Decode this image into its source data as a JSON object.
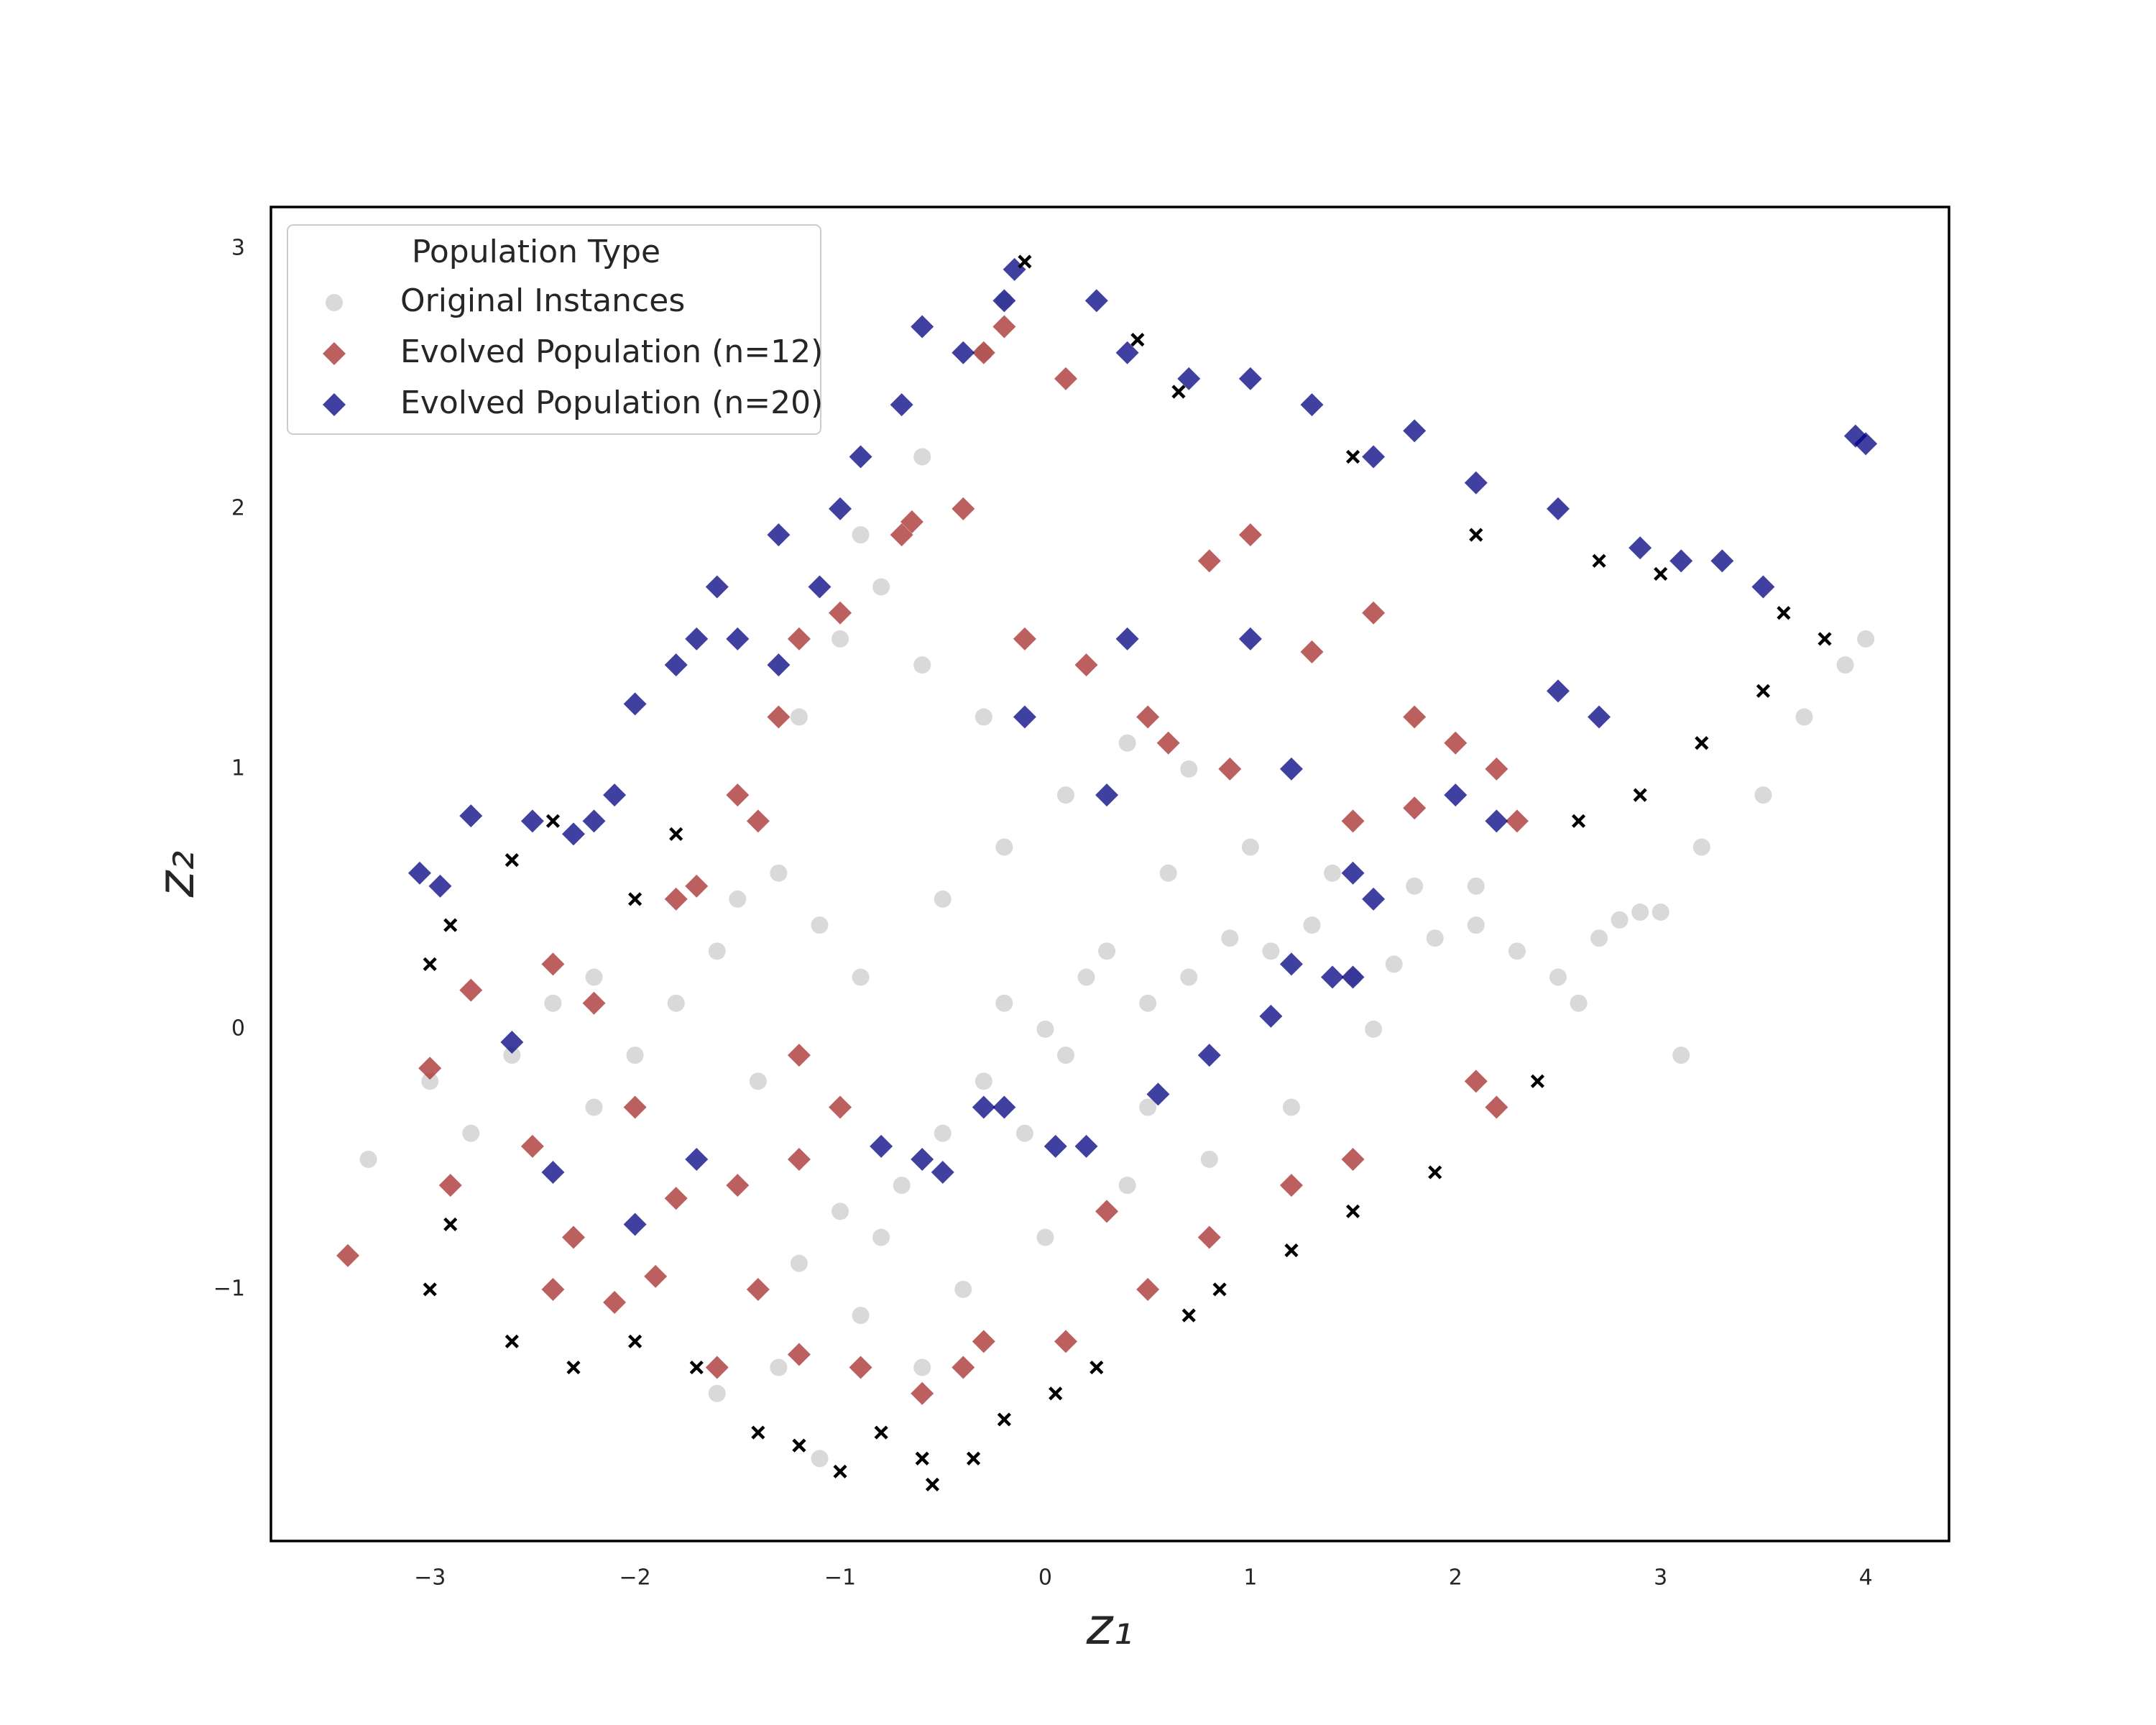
{
  "chart_data": {
    "type": "scatter",
    "xlabel": "z₁",
    "ylabel": "z₂",
    "xlim": [
      -3.775,
      4.406
    ],
    "ylim": [
      -1.967,
      3.16
    ],
    "xticks": [
      {
        "value": -3,
        "label": "−3"
      },
      {
        "value": -2,
        "label": "−2"
      },
      {
        "value": -1,
        "label": "−1"
      },
      0,
      1,
      2,
      3,
      4
    ],
    "yticks": [
      {
        "value": -1,
        "label": "−1"
      },
      0,
      1,
      2,
      3
    ],
    "grid": false,
    "legend_title": "Population Type",
    "legend_loc": "upper left",
    "series": [
      {
        "name": "Original Instances",
        "color": "#808080",
        "marker": "circle",
        "x": [
          -3.3,
          -3,
          -2.8,
          -2.6,
          -2.4,
          -2.2,
          -2.0,
          -2.2,
          -1.8,
          -1.6,
          -1.5,
          -1.3,
          -1.1,
          -0.9,
          -1.4,
          -1.2,
          -1.0,
          -0.8,
          -0.9,
          -0.7,
          -0.5,
          -0.3,
          -0.2,
          0,
          0.2,
          0.1,
          0.3,
          0.5,
          0.7,
          0.9,
          1.1,
          1.3,
          1.5,
          1.7,
          1.9,
          2.1,
          2.3,
          2.5,
          2.7,
          2.9,
          3.0,
          2.8,
          1.6,
          1.2,
          0.8,
          0.4,
          0,
          -0.4,
          -0.6,
          -1.3,
          -1.6,
          -1.1,
          -0.5,
          -0.2,
          0.1,
          0.4,
          0.7,
          -0.3,
          -0.6,
          -0.8,
          -0.9,
          -0.6,
          -0.3,
          -0.2,
          -1,
          -1.2,
          0.6,
          1,
          1.4,
          1.8,
          2.1,
          3.2,
          3.5,
          3.7,
          3.9,
          4.0,
          3.1,
          2.6,
          0.5,
          -0.1
        ],
        "y": [
          -0.5,
          -0.2,
          -0.4,
          -0.1,
          0.1,
          0.2,
          -0.1,
          -0.3,
          0.1,
          0.3,
          0.5,
          0.6,
          0.4,
          0.2,
          -0.2,
          -0.9,
          -0.7,
          -0.8,
          -1.1,
          -0.6,
          -0.4,
          -0.2,
          0.1,
          0,
          0.2,
          -0.1,
          0.3,
          0.1,
          0.2,
          0.35,
          0.3,
          0.4,
          0.2,
          0.25,
          0.35,
          0.4,
          0.3,
          0.2,
          0.35,
          0.45,
          0.45,
          0.42,
          0,
          -0.3,
          -0.5,
          -0.6,
          -0.8,
          -1.0,
          -1.3,
          -1.3,
          -1.4,
          -1.65,
          0.5,
          0.7,
          0.9,
          1.1,
          1.0,
          1.2,
          1.4,
          1.7,
          1.9,
          2.2,
          2.6,
          2.8,
          1.5,
          1.2,
          0.6,
          0.7,
          0.6,
          0.55,
          0.55,
          0.7,
          0.9,
          1.2,
          1.4,
          1.5,
          -0.1,
          0.1,
          -0.3,
          -0.4
        ]
      },
      {
        "name": "Evolved Population (n=12)",
        "color": "#a52a2a",
        "marker": "diamond",
        "x": [
          -3.4,
          -3,
          -2.9,
          -2.8,
          -2.5,
          -2.4,
          -2.2,
          -2.0,
          -1.8,
          -1.7,
          -1.8,
          -1.5,
          -1.4,
          -1.3,
          -1.2,
          -1.0,
          -0.7,
          -0.65,
          -0.4,
          -0.3,
          -0.2,
          0.1,
          -0.1,
          0.2,
          0.5,
          0.6,
          0.8,
          1.0,
          1.3,
          1.6,
          1.8,
          2.0,
          2.2,
          1.8,
          2.3,
          2.2,
          2.1,
          1.5,
          1.2,
          0.8,
          0.5,
          0.1,
          -0.3,
          -0.6,
          -0.9,
          -1.2,
          -1.6,
          -1.4,
          -1.9,
          -2.4,
          -2.1,
          -1.2,
          -1.0,
          -1.2,
          -1.5,
          -2.3,
          -0.4,
          0.3,
          0.9,
          1.5
        ],
        "y": [
          -0.87,
          -0.15,
          -0.6,
          0.15,
          -0.45,
          0.25,
          0.1,
          -0.3,
          -0.65,
          0.55,
          0.5,
          0.9,
          0.8,
          1.2,
          1.5,
          1.6,
          1.9,
          1.95,
          2.0,
          2.6,
          2.7,
          2.5,
          1.5,
          1.4,
          1.2,
          1.1,
          1.8,
          1.9,
          1.45,
          1.6,
          1.2,
          1.1,
          1.0,
          0.85,
          0.8,
          -0.3,
          -0.2,
          -0.5,
          -0.6,
          -0.8,
          -1.0,
          -1.2,
          -1.2,
          -1.4,
          -1.3,
          -1.25,
          -1.3,
          -1.0,
          -0.95,
          -1.0,
          -1.05,
          -0.1,
          -0.3,
          -0.5,
          -0.6,
          -0.8,
          -1.3,
          -0.7,
          1.0,
          0.8
        ]
      },
      {
        "name": "Evolved Population (n=20)",
        "color": "#000080",
        "marker": "diamond",
        "x": [
          -3.05,
          -2.95,
          -2.8,
          -2.5,
          -2.3,
          -2.2,
          -2.1,
          -2.0,
          -1.8,
          -1.7,
          -1.6,
          -1.5,
          -1.3,
          -1.3,
          -1.1,
          -1.0,
          -0.9,
          -0.7,
          -0.6,
          -0.4,
          -0.2,
          -0.15,
          0.25,
          0.4,
          0.7,
          1.0,
          1.3,
          1.6,
          1.8,
          2.1,
          2.5,
          2.9,
          3.1,
          3.3,
          3.5,
          3.95,
          4.0,
          -2.6,
          -2.4,
          -2.0,
          -1.7,
          -0.8,
          -0.6,
          -0.5,
          -0.3,
          -0.2,
          0.05,
          0.2,
          0.55,
          0.8,
          1.1,
          1.2,
          1.4,
          1.5,
          1.5,
          1.6,
          -0.1,
          0.4,
          1.0,
          0.3,
          2.0,
          2.2,
          2.5,
          2.7,
          1.2
        ],
        "y": [
          0.6,
          0.55,
          0.82,
          0.8,
          0.75,
          0.8,
          0.9,
          1.25,
          1.4,
          1.5,
          1.7,
          1.5,
          1.9,
          1.4,
          1.7,
          2.0,
          2.2,
          2.4,
          2.7,
          2.6,
          2.8,
          2.92,
          2.8,
          2.6,
          2.5,
          2.5,
          2.4,
          2.2,
          2.3,
          2.1,
          2.0,
          1.85,
          1.8,
          1.8,
          1.7,
          2.28,
          2.25,
          -0.05,
          -0.55,
          -0.75,
          -0.5,
          -0.45,
          -0.5,
          -0.55,
          -0.3,
          -0.3,
          -0.45,
          -0.45,
          -0.25,
          -0.1,
          0.05,
          0.25,
          0.2,
          0.2,
          0.6,
          0.5,
          1.2,
          1.5,
          1.5,
          0.9,
          0.9,
          0.8,
          1.3,
          1.2,
          1.0
        ]
      },
      {
        "color": "#000000",
        "marker": "x",
        "x": [
          -3,
          -2.9,
          -2.6,
          -2.3,
          -2.0,
          -1.7,
          -1.4,
          -1.2,
          -1.0,
          -0.8,
          -0.6,
          -0.55,
          -0.35,
          -0.2,
          0.05,
          0.25,
          0.7,
          0.85,
          1.2,
          1.5,
          1.9,
          2.4,
          -3,
          -2.9,
          -2.6,
          -2.4,
          -2.0,
          -1.8,
          -0.1,
          0.45,
          0.65,
          1.5,
          2.1,
          2.7,
          3.0,
          3.6,
          3.8,
          3.5,
          3.2,
          2.9,
          2.6
        ],
        "y": [
          -1,
          -0.75,
          -1.2,
          -1.3,
          -1.2,
          -1.3,
          -1.55,
          -1.6,
          -1.7,
          -1.55,
          -1.65,
          -1.75,
          -1.65,
          -1.5,
          -1.4,
          -1.3,
          -1.1,
          -1.0,
          -0.85,
          -0.7,
          -0.55,
          -0.2,
          0.25,
          0.4,
          0.65,
          0.8,
          0.5,
          0.75,
          2.95,
          2.65,
          2.45,
          2.2,
          1.9,
          1.8,
          1.75,
          1.6,
          1.5,
          1.3,
          1.1,
          0.9,
          0.8
        ]
      }
    ]
  }
}
